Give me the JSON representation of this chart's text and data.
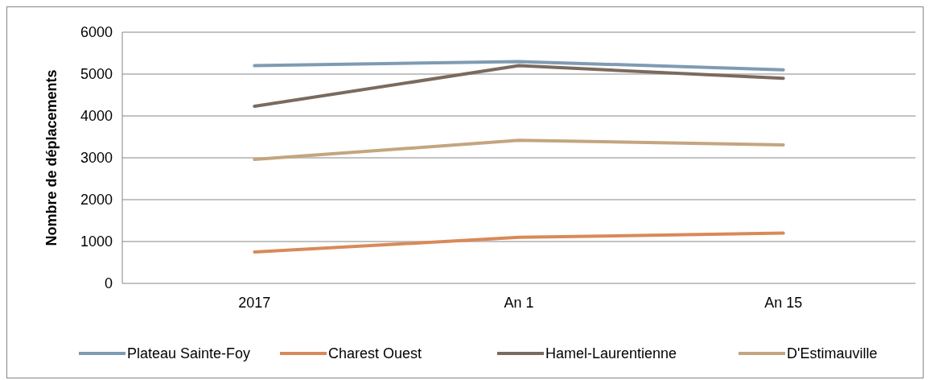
{
  "chart_data": {
    "type": "line",
    "ylabel": "Nombre de déplacements",
    "categories": [
      "2017",
      "An 1",
      "An 15"
    ],
    "series": [
      {
        "name": "Plateau Sainte-Foy",
        "color": "#7f9bb3",
        "values": [
          5200,
          5300,
          5100
        ]
      },
      {
        "name": "Charest Ouest",
        "color": "#d9895a",
        "values": [
          750,
          1100,
          1200
        ]
      },
      {
        "name": "Hamel-Laurentienne",
        "color": "#7b6a5e",
        "values": [
          4230,
          5200,
          4900
        ]
      },
      {
        "name": "D'Estimauville",
        "color": "#c4a57f",
        "values": [
          2960,
          3420,
          3310
        ]
      }
    ],
    "ylim": [
      0,
      6000
    ],
    "yticks": [
      0,
      1000,
      2000,
      3000,
      4000,
      5000,
      6000
    ],
    "grid": "y",
    "legend": "bottom",
    "marker": "none",
    "line_style": "solid"
  }
}
